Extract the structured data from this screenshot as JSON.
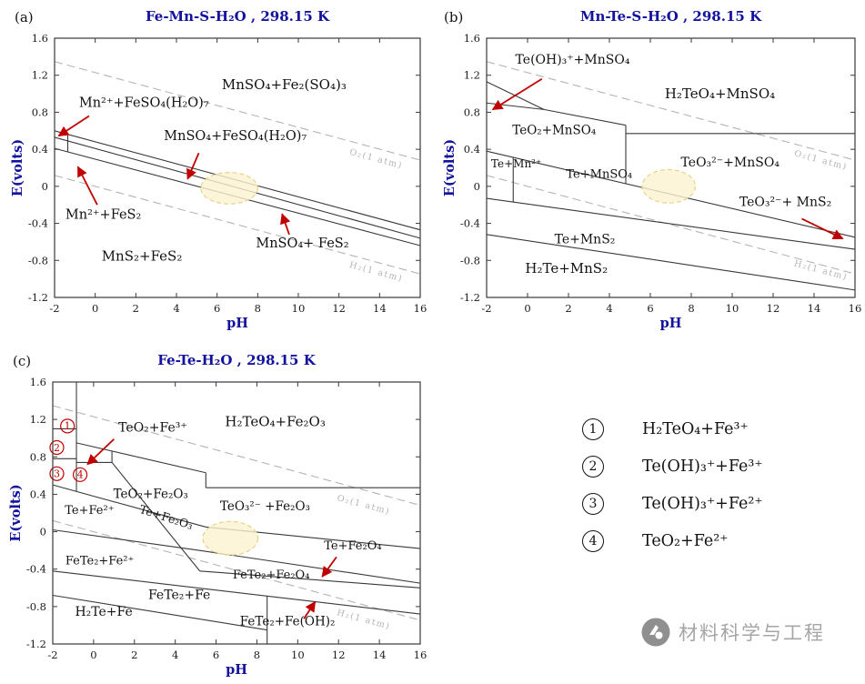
{
  "figure": {
    "bg": "#ffffff",
    "title_color": "#12129e",
    "axis_color": "#3a3a3a",
    "tick_text_color": "#1a1a1a",
    "boundary_color": "#3a3a3a",
    "dashed_color": "#b4b4b4",
    "arrow_color": "#c00000",
    "marker_color": "#c00000",
    "label_color": "#111111",
    "highlight_fill": "#fcf3cf",
    "highlight_stroke": "#e6d38a"
  },
  "chart_data": [
    {
      "type": "line",
      "panel_label": "(a)",
      "title": "Fe-Mn-S-H₂O , 298.15 K",
      "xlabel": "pH",
      "ylabel": "E(volts)",
      "xlim": [
        -2,
        16
      ],
      "ylim": [
        -1.2,
        1.6
      ],
      "xticks": [
        -2,
        0,
        2,
        4,
        6,
        8,
        10,
        12,
        14,
        16
      ],
      "yticks": [
        -1.2,
        -0.8,
        -0.4,
        0,
        0.4,
        0.8,
        1.2,
        1.6
      ],
      "gas_lines": [
        {
          "label": "O₂(1 atm)",
          "points": [
            [
              -2,
              1.347
            ],
            [
              16,
              0.283
            ]
          ],
          "label_at": [
            13.8,
            0.27
          ],
          "rotate": 15
        },
        {
          "label": "H₂(1 atm)",
          "points": [
            [
              -2,
              0.118
            ],
            [
              16,
              -0.946
            ]
          ],
          "label_at": [
            13.8,
            -0.95
          ],
          "rotate": 15
        }
      ],
      "boundaries": [
        [
          [
            -2,
            0.6
          ],
          [
            16,
            -0.47
          ]
        ],
        [
          [
            -2,
            0.53
          ],
          [
            16,
            -0.56
          ]
        ],
        [
          [
            -2,
            0.41
          ],
          [
            16,
            -0.64
          ]
        ],
        [
          [
            -1.35,
            0.565
          ],
          [
            -1.35,
            0.37
          ]
        ]
      ],
      "regions": [
        {
          "label": "MnSO₄+Fe₂(SO₄)₃",
          "at": [
            9.3,
            1.05
          ],
          "size": 15
        },
        {
          "label": "Mn²⁺+FeSO₄(H₂O)₇",
          "at": [
            2.4,
            0.86
          ],
          "size": 14.5
        },
        {
          "label": "MnSO₄+FeSO₄(H₂O)₇",
          "at": [
            6.9,
            0.5
          ],
          "size": 14.5
        },
        {
          "label": "Mn²⁺+FeS₂",
          "at": [
            0.4,
            -0.35
          ],
          "size": 14.5
        },
        {
          "label": "MnSO₄+ FeS₂",
          "at": [
            10.2,
            -0.66
          ],
          "size": 14.5
        },
        {
          "label": "MnS₂+FeS₂",
          "at": [
            2.3,
            -0.8
          ],
          "size": 15
        }
      ],
      "arrows": [
        {
          "from": [
            -0.3,
            0.76
          ],
          "to": [
            -1.8,
            0.545
          ]
        },
        {
          "from": [
            5.1,
            0.36
          ],
          "to": [
            4.55,
            0.08
          ]
        },
        {
          "from": [
            0.1,
            -0.2
          ],
          "to": [
            -0.85,
            0.21
          ]
        },
        {
          "from": [
            9.55,
            -0.52
          ],
          "to": [
            9.2,
            -0.3
          ]
        }
      ],
      "markers": [],
      "highlight": {
        "cx": 6.6,
        "cy": -0.02,
        "rx": 1.4,
        "ry": 0.17
      }
    },
    {
      "type": "line",
      "panel_label": "(b)",
      "title": "Mn-Te-S-H₂O , 298.15 K",
      "xlabel": "pH",
      "ylabel": "E(volts)",
      "xlim": [
        -2,
        16
      ],
      "ylim": [
        -1.2,
        1.6
      ],
      "xticks": [
        -2,
        0,
        2,
        4,
        6,
        8,
        10,
        12,
        14,
        16
      ],
      "yticks": [
        -1.2,
        -0.8,
        -0.4,
        0,
        0.4,
        0.8,
        1.2,
        1.6
      ],
      "gas_lines": [
        {
          "label": "O₂(1 atm)",
          "points": [
            [
              -2,
              1.347
            ],
            [
              16,
              0.283
            ]
          ],
          "label_at": [
            14.3,
            0.255
          ],
          "rotate": 15
        },
        {
          "label": "H₂(1 atm)",
          "points": [
            [
              -2,
              0.118
            ],
            [
              16,
              -0.946
            ]
          ],
          "label_at": [
            14.3,
            -0.935
          ],
          "rotate": 15
        }
      ],
      "boundaries": [
        [
          [
            -2,
            1.13
          ],
          [
            0.8,
            0.83
          ]
        ],
        [
          [
            -2,
            0.9
          ],
          [
            0.8,
            0.83
          ]
        ],
        [
          [
            0.8,
            0.83
          ],
          [
            4.8,
            0.66
          ]
        ],
        [
          [
            4.8,
            0.66
          ],
          [
            4.8,
            0.03
          ]
        ],
        [
          [
            4.8,
            0.57
          ],
          [
            16,
            0.57
          ]
        ],
        [
          [
            -2,
            0.38
          ],
          [
            16,
            -0.55
          ]
        ],
        [
          [
            -0.7,
            0.315
          ],
          [
            -0.7,
            -0.17
          ]
        ],
        [
          [
            -2,
            -0.13
          ],
          [
            16,
            -0.68
          ]
        ],
        [
          [
            -2,
            -0.52
          ],
          [
            16,
            -1.12
          ]
        ]
      ],
      "regions": [
        {
          "label": "Te(OH)₃⁺+MnSO₄",
          "at": [
            2.2,
            1.325
          ],
          "size": 14
        },
        {
          "label": "H₂TeO₄+MnSO₄",
          "at": [
            9.4,
            0.95
          ],
          "size": 15
        },
        {
          "label": "TeO₂+MnSO₄",
          "at": [
            1.3,
            0.565
          ],
          "size": 13.5
        },
        {
          "label": "Te+Mn²⁺",
          "at": [
            -0.55,
            0.205
          ],
          "size": 12
        },
        {
          "label": "Te+MnSO₄",
          "at": [
            3.5,
            0.09
          ],
          "size": 13
        },
        {
          "label": "TeO₃²⁻+MnSO₄",
          "at": [
            9.9,
            0.215
          ],
          "size": 14
        },
        {
          "label": "TeO₃²⁻+ MnS₂",
          "at": [
            12.6,
            -0.215
          ],
          "size": 14
        },
        {
          "label": "Te+MnS₂",
          "at": [
            2.8,
            -0.615
          ],
          "size": 14
        },
        {
          "label": "H₂Te+MnS₂",
          "at": [
            1.9,
            -0.935
          ],
          "size": 15
        }
      ],
      "arrows": [
        {
          "from": [
            0.7,
            1.16
          ],
          "to": [
            -1.7,
            0.83
          ]
        },
        {
          "from": [
            13.4,
            -0.35
          ],
          "to": [
            15.4,
            -0.565
          ]
        }
      ],
      "markers": [],
      "highlight": {
        "cx": 6.9,
        "cy": 0,
        "rx": 1.3,
        "ry": 0.18
      }
    },
    {
      "type": "line",
      "panel_label": "(c)",
      "title": "Fe-Te-H₂O , 298.15 K",
      "xlabel": "pH",
      "ylabel": "E(volts)",
      "xlim": [
        -2,
        16
      ],
      "ylim": [
        -1.2,
        1.6
      ],
      "xticks": [
        -2,
        0,
        2,
        4,
        6,
        8,
        10,
        12,
        14,
        16
      ],
      "yticks": [
        -1.2,
        -0.8,
        -0.4,
        0,
        0.4,
        0.8,
        1.2,
        1.6
      ],
      "gas_lines": [
        {
          "label": "O₂(1 atm)",
          "points": [
            [
              -2,
              1.347
            ],
            [
              16,
              0.283
            ]
          ],
          "label_at": [
            13.2,
            0.26
          ],
          "rotate": 15
        },
        {
          "label": "H₂(1 atm)",
          "points": [
            [
              -2,
              0.118
            ],
            [
              16,
              -0.946
            ]
          ],
          "label_at": [
            13.2,
            -0.965
          ],
          "rotate": 15
        }
      ],
      "boundaries": [
        [
          [
            -0.84,
            1.6
          ],
          [
            -0.84,
            0.43
          ]
        ],
        [
          [
            -2,
            1.1
          ],
          [
            -0.84,
            1.1
          ]
        ],
        [
          [
            -2,
            0.78
          ],
          [
            -0.84,
            0.78
          ]
        ],
        [
          [
            -0.84,
            0.95
          ],
          [
            5.5,
            0.63
          ]
        ],
        [
          [
            -0.84,
            0.74
          ],
          [
            0.9,
            0.74
          ]
        ],
        [
          [
            0.9,
            0.865
          ],
          [
            0.9,
            0.74
          ]
        ],
        [
          [
            0.9,
            0.74
          ],
          [
            5.2,
            -0.42
          ]
        ],
        [
          [
            -2,
            0.5
          ],
          [
            5.5,
            0.05
          ]
        ],
        [
          [
            5.5,
            0.63
          ],
          [
            5.5,
            0.47
          ]
        ],
        [
          [
            5.5,
            0.47
          ],
          [
            16,
            0.47
          ]
        ],
        [
          [
            5.5,
            0.05
          ],
          [
            16,
            -0.18
          ]
        ],
        [
          [
            -2,
            0.02
          ],
          [
            5.2,
            -0.2
          ],
          [
            16,
            -0.55
          ]
        ],
        [
          [
            5.2,
            -0.42
          ],
          [
            16,
            -0.6
          ]
        ],
        [
          [
            -2,
            -0.42
          ],
          [
            16,
            -0.88
          ]
        ],
        [
          [
            -2,
            -0.68
          ],
          [
            8.5,
            -1.05
          ]
        ],
        [
          [
            8.5,
            -0.69
          ],
          [
            8.5,
            -1.2
          ]
        ]
      ],
      "regions": [
        {
          "label": "TeO₂+Fe³⁺",
          "at": [
            2.9,
            1.07
          ],
          "size": 14
        },
        {
          "label": "H₂TeO₄+Fe₂O₃",
          "at": [
            8.9,
            1.13
          ],
          "size": 15
        },
        {
          "label": "TeO₂+Fe₂O₃",
          "at": [
            2.8,
            0.36
          ],
          "size": 13.5
        },
        {
          "label": "TeO₃²⁻ +Fe₂O₃",
          "at": [
            8.4,
            0.23
          ],
          "size": 13.5
        },
        {
          "label": "Te+Fe²⁺",
          "at": [
            -0.2,
            0.19
          ],
          "size": 13
        },
        {
          "label": "Te+Fe₂O₃",
          "at": [
            3.5,
            0.115
          ],
          "size": 12.5,
          "rotate": 18
        },
        {
          "label": "Te+Fe₂O₄",
          "at": [
            12.7,
            -0.19
          ],
          "size": 13
        },
        {
          "label": "FeTe₂+Fe²⁺",
          "at": [
            0.3,
            -0.35
          ],
          "size": 13
        },
        {
          "label": "FeTe₂+Fe₂O₄",
          "at": [
            8.7,
            -0.5
          ],
          "size": 13
        },
        {
          "label": "FeTe₂+Fe",
          "at": [
            4.2,
            -0.72
          ],
          "size": 14
        },
        {
          "label": "H₂Te+Fe",
          "at": [
            0.5,
            -0.9
          ],
          "size": 14
        },
        {
          "label": "FeTe₂+Fe(OH)₂",
          "at": [
            9.5,
            -1.0
          ],
          "size": 13.5
        }
      ],
      "arrows": [
        {
          "from": [
            1.0,
            0.99
          ],
          "to": [
            -0.3,
            0.72
          ]
        },
        {
          "from": [
            11.9,
            -0.27
          ],
          "to": [
            11.2,
            -0.48
          ]
        },
        {
          "from": [
            10.3,
            -0.93
          ],
          "to": [
            10.85,
            -0.75
          ]
        }
      ],
      "markers": [
        {
          "num": "1",
          "at": [
            -1.28,
            1.13
          ]
        },
        {
          "num": "2",
          "at": [
            -1.8,
            0.9
          ]
        },
        {
          "num": "3",
          "at": [
            -1.8,
            0.62
          ]
        },
        {
          "num": "4",
          "at": [
            -0.66,
            0.61
          ]
        }
      ],
      "highlight": {
        "cx": 6.7,
        "cy": -0.07,
        "rx": 1.35,
        "ry": 0.18
      }
    }
  ],
  "legend": {
    "items": [
      {
        "num": "1",
        "label": "H₂TeO₄+Fe³⁺"
      },
      {
        "num": "2",
        "label": "Te(OH)₃⁺+Fe³⁺"
      },
      {
        "num": "3",
        "label": "Te(OH)₃⁺+Fe²⁺"
      },
      {
        "num": "4",
        "label": "TeO₂+Fe²⁺"
      }
    ]
  },
  "watermark": {
    "text": "材料科学与工程"
  }
}
